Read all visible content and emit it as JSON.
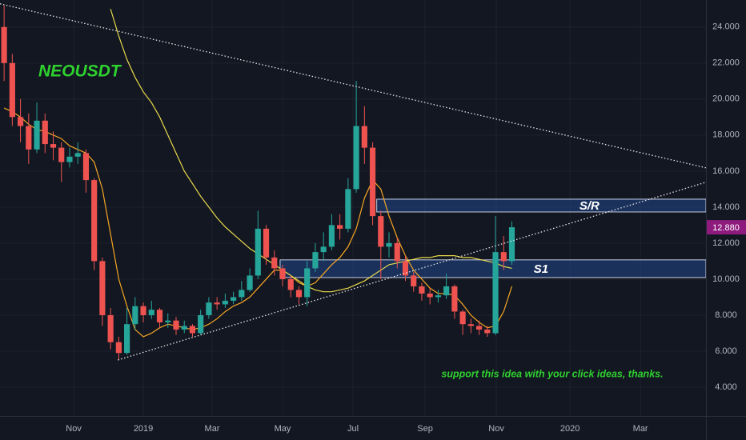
{
  "chart_data": {
    "type": "candlestick",
    "title": "NEOUSDT",
    "note": "support this idea with your click ideas, thanks.",
    "up_color": "#26a69a",
    "down_color": "#ef5350",
    "grid": true,
    "xlim": [
      -0.5,
      85.7
    ],
    "ylim": [
      2.4,
      25.5
    ],
    "xticks": [
      {
        "value": 8.5,
        "label": "Nov"
      },
      {
        "value": 17.0,
        "label": "2019"
      },
      {
        "value": 25.4,
        "label": "Mar"
      },
      {
        "value": 34.0,
        "label": "May"
      },
      {
        "value": 42.6,
        "label": "Jul"
      },
      {
        "value": 51.4,
        "label": "Sep"
      },
      {
        "value": 60.1,
        "label": "Nov"
      },
      {
        "value": 69.1,
        "label": "2020"
      },
      {
        "value": 77.7,
        "label": "Mar"
      }
    ],
    "yticks": [
      {
        "value": 4,
        "label": "4.000"
      },
      {
        "value": 6,
        "label": "6.000"
      },
      {
        "value": 8,
        "label": "8.000"
      },
      {
        "value": 10,
        "label": "10.000"
      },
      {
        "value": 12,
        "label": "12.000"
      },
      {
        "value": 14,
        "label": "14.000"
      },
      {
        "value": 16,
        "label": "16.000"
      },
      {
        "value": 18,
        "label": "18.000"
      },
      {
        "value": 20,
        "label": "20.000"
      },
      {
        "value": 22,
        "label": "22.000"
      },
      {
        "value": 24,
        "label": "24.000"
      }
    ],
    "x": [
      0,
      1,
      2,
      3,
      4,
      5,
      6,
      7,
      8,
      9,
      10,
      11,
      12,
      13,
      14,
      15,
      16,
      17,
      18,
      19,
      20,
      21,
      22,
      23,
      24,
      25,
      26,
      27,
      28,
      29,
      30,
      31,
      32,
      33,
      34,
      35,
      36,
      37,
      38,
      39,
      40,
      41,
      42,
      43,
      44,
      45,
      46,
      47,
      48,
      49,
      50,
      51,
      52,
      53,
      54,
      55,
      56,
      57,
      58,
      59,
      60,
      61,
      62
    ],
    "open": [
      24,
      22,
      19,
      18.5,
      17.2,
      18.8,
      17.5,
      17.3,
      16.5,
      16.8,
      17,
      15.5,
      11,
      8,
      6.5,
      5.9,
      7.5,
      8.5,
      8,
      8.3,
      7.6,
      7.7,
      7.2,
      7.4,
      7,
      8,
      8.7,
      8.6,
      8.8,
      9,
      9.4,
      10.2,
      12.8,
      11.2,
      10.6,
      10,
      9.4,
      9,
      10.6,
      11.5,
      11.8,
      13,
      12.8,
      15,
      18.5,
      17.3,
      13.5,
      11.8,
      12,
      11,
      10.2,
      9.6,
      9.2,
      9,
      9.1,
      9.6,
      8.2,
      7.5,
      7.4,
      7.2,
      7,
      11.5,
      11
    ],
    "high": [
      25.2,
      22.5,
      20,
      19.2,
      19.8,
      19.2,
      18.2,
      17.6,
      17.3,
      17.6,
      17.2,
      15.6,
      11.2,
      8.4,
      6.8,
      8.4,
      9,
      8.7,
      8.8,
      8.4,
      8.1,
      7.9,
      7.7,
      7.5,
      8.3,
      9,
      9,
      9.2,
      9.3,
      9.9,
      10.6,
      13.8,
      13,
      11.6,
      10.8,
      10.2,
      9.6,
      11,
      12,
      12.6,
      13.6,
      13.6,
      15.6,
      21,
      19.6,
      17.6,
      13.8,
      12.6,
      12.3,
      11.3,
      10.4,
      9.8,
      9.5,
      9.4,
      10.3,
      9.7,
      8.3,
      7.8,
      7.7,
      7.4,
      13.5,
      12.4,
      13.2
    ],
    "low": [
      21,
      18.5,
      17.6,
      16.4,
      17,
      17,
      16.6,
      15.4,
      16.2,
      16.4,
      14.8,
      10.5,
      7.4,
      6.1,
      5.5,
      5.8,
      7.2,
      7.6,
      7.8,
      7.3,
      7.3,
      6.9,
      7,
      6.8,
      6.9,
      7.8,
      8.3,
      8.4,
      8.6,
      8.8,
      9.3,
      10,
      10.8,
      10.2,
      9.6,
      9,
      8.6,
      8.5,
      10.4,
      11,
      11.6,
      12.2,
      12.6,
      14.8,
      16.4,
      13,
      10,
      11.2,
      10.6,
      9.9,
      9.3,
      8.8,
      8.6,
      8.7,
      8.9,
      7.8,
      6.9,
      7,
      6.9,
      6.8,
      6.9,
      10.5,
      10.8
    ],
    "close": [
      22,
      19,
      18.5,
      17.2,
      18.8,
      17.5,
      17.3,
      16.5,
      16.8,
      17,
      15.5,
      11,
      8,
      6.5,
      5.9,
      7.5,
      8.5,
      8,
      8.3,
      7.6,
      7.7,
      7.2,
      7.4,
      7,
      8,
      8.7,
      8.6,
      8.8,
      9,
      9.4,
      10.2,
      12.8,
      11.2,
      10.6,
      10,
      9.4,
      9,
      10.6,
      11.5,
      11.8,
      13,
      12.8,
      15,
      18.5,
      17.3,
      13.5,
      11.8,
      12,
      11,
      10.2,
      9.6,
      9.2,
      9,
      9.1,
      9.6,
      8.2,
      7.5,
      7.4,
      7.2,
      7,
      11.5,
      11,
      12.88
    ],
    "last_price": {
      "value": 12.88,
      "label": "12.880",
      "color": "#8e1a7e"
    },
    "averages": [
      {
        "color": "#f5a623",
        "values": [
          19.5,
          19.3,
          19,
          18.6,
          18.3,
          18.2,
          18,
          17.8,
          17.4,
          17.2,
          17,
          16.5,
          15,
          12.5,
          10,
          8.5,
          7.2,
          6.8,
          7,
          7.3,
          7.5,
          7.4,
          7.3,
          7.2,
          7.3,
          7.5,
          7.8,
          8.2,
          8.5,
          8.7,
          9,
          9.5,
          10,
          10.5,
          10.5,
          10.2,
          9.8,
          9.6,
          9.8,
          10.3,
          10.8,
          11.2,
          11.8,
          12.8,
          14.5,
          15.5,
          15,
          13.5,
          12.3,
          11.3,
          10.5,
          10,
          9.5,
          9.2,
          9.2,
          9.1,
          8.6,
          8,
          7.6,
          7.3,
          7.4,
          8.2,
          9.6
        ]
      },
      {
        "color": "#e8d84a",
        "values": [
          null,
          null,
          null,
          null,
          null,
          null,
          null,
          null,
          null,
          null,
          null,
          null,
          null,
          25,
          23.5,
          22.2,
          21.2,
          20.4,
          19.8,
          19,
          18,
          17,
          16,
          15.3,
          14.6,
          14,
          13.4,
          12.9,
          12.5,
          12.1,
          11.7,
          11.4,
          11.1,
          10.8,
          10.5,
          10.2,
          9.9,
          9.6,
          9.4,
          9.3,
          9.3,
          9.4,
          9.5,
          9.7,
          9.9,
          10.2,
          10.5,
          10.8,
          10.9,
          11,
          11.1,
          11.2,
          11.2,
          11.3,
          11.3,
          11.3,
          11.2,
          11.2,
          11.1,
          11,
          10.9,
          10.7,
          10.6
        ]
      }
    ],
    "trendlines": [
      {
        "x": [
          -0.5,
          85.7
        ],
        "y": [
          25.29,
          16.18
        ]
      },
      {
        "x": [
          13.9,
          85.7
        ],
        "y": [
          5.51,
          15.38
        ]
      }
    ],
    "zones": [
      {
        "label": "S/R",
        "x": [
          45.5,
          85.7
        ],
        "bottom": 13.73,
        "top": 14.44
      },
      {
        "label": "S1",
        "x": [
          33.7,
          85.7
        ],
        "bottom": 10.09,
        "top": 11.07
      }
    ]
  }
}
